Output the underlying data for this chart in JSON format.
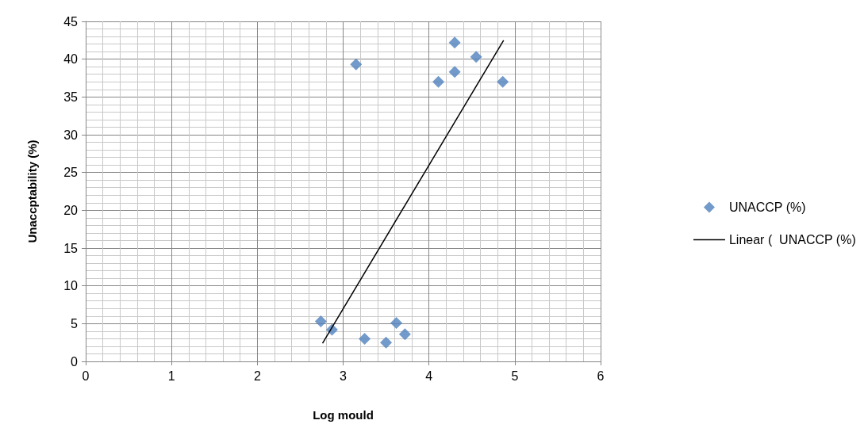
{
  "chart_data": {
    "type": "scatter",
    "xlabel": "Log mould",
    "ylabel": "Unaccptability (%)",
    "xlim": [
      0,
      6
    ],
    "xticks": [
      0,
      1,
      2,
      3,
      4,
      5,
      6
    ],
    "ylim": [
      0,
      45
    ],
    "yticks": [
      0,
      5,
      10,
      15,
      20,
      25,
      30,
      35,
      40,
      45
    ],
    "grid": true,
    "legend": "right",
    "marker": "diamond",
    "series": [
      {
        "name": "UNACCP (%)",
        "color": "#4f81bd",
        "x": [
          2.74,
          2.87,
          3.25,
          3.5,
          3.62,
          3.72,
          3.15,
          4.11,
          4.3,
          4.3,
          4.55,
          4.86
        ],
        "values": [
          5.3,
          4.2,
          3.0,
          2.5,
          5.1,
          3.6,
          39.3,
          37.0,
          38.3,
          42.2,
          40.3,
          37.0
        ]
      },
      {
        "name": "Linear (  UNACCP (%)",
        "type": "line",
        "color": "#000000",
        "line_style": "solid",
        "marker": "none",
        "x": [
          2.76,
          4.87
        ],
        "values": [
          2.4,
          42.5
        ]
      }
    ]
  }
}
